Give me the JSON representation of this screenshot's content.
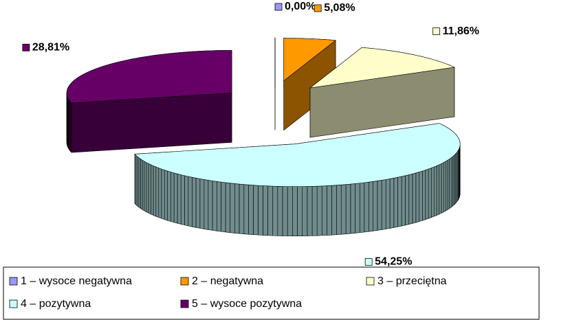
{
  "chart_data": {
    "type": "pie",
    "categories": [
      "1 – wysoce negatywna",
      "2 – negatywna",
      "3 – przeciętna",
      "4 – pozytywna",
      "5 – wysoce pozytywna"
    ],
    "values": [
      0,
      5.08,
      11.86,
      54.25,
      28.81
    ],
    "value_labels": [
      "0,00%",
      "5,08%",
      "11,86%",
      "54,25%",
      "28,81%"
    ],
    "colors": [
      "#9999ff",
      "#ff9900",
      "#ffffcc",
      "#ccffff",
      "#660066"
    ],
    "legend": "bottom"
  }
}
